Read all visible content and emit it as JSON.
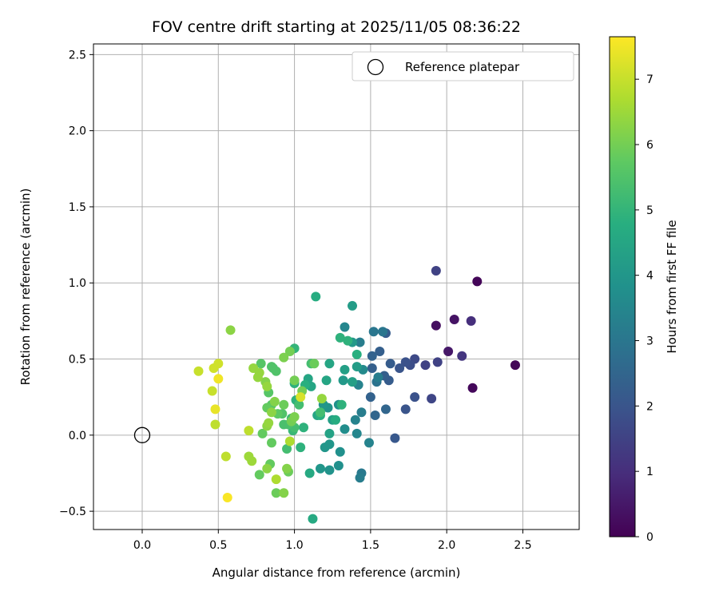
{
  "chart_data": {
    "type": "scatter",
    "title": "FOV centre drift starting at 2025/11/05 08:36:22",
    "xlabel": "Angular distance from reference (arcmin)",
    "ylabel": "Rotation from reference (arcmin)",
    "xlim": [
      -0.32,
      2.87
    ],
    "ylim": [
      -0.62,
      2.57
    ],
    "xticks": [
      0.0,
      0.5,
      1.0,
      1.5,
      2.0,
      2.5
    ],
    "xtick_labels": [
      "0.0",
      "0.5",
      "1.0",
      "1.5",
      "2.0",
      "2.5"
    ],
    "yticks": [
      -0.5,
      0.0,
      0.5,
      1.0,
      1.5,
      2.0,
      2.5
    ],
    "ytick_labels": [
      "−0.5",
      "0.0",
      "0.5",
      "1.0",
      "1.5",
      "2.0",
      "2.5"
    ],
    "grid": true,
    "legend": {
      "position": "top-right",
      "label": "Reference platepar"
    },
    "reference_point": {
      "x": 0.0,
      "y": 0.0
    },
    "colorbar": {
      "label": "Hours from first FF file",
      "colormap": "viridis",
      "min": 0,
      "max": 7.65,
      "ticks": [
        0,
        1,
        2,
        3,
        4,
        5,
        6,
        7
      ],
      "tick_labels": [
        "0",
        "1",
        "2",
        "3",
        "4",
        "5",
        "6",
        "7"
      ]
    },
    "points": [
      {
        "x": 2.2,
        "y": 1.01,
        "t": 0.1
      },
      {
        "x": 2.45,
        "y": 0.46,
        "t": 0.1
      },
      {
        "x": 2.17,
        "y": 0.31,
        "t": 0.15
      },
      {
        "x": 1.93,
        "y": 0.72,
        "t": 0.3
      },
      {
        "x": 2.05,
        "y": 0.76,
        "t": 0.4
      },
      {
        "x": 2.01,
        "y": 0.55,
        "t": 0.5
      },
      {
        "x": 2.16,
        "y": 0.75,
        "t": 1.0
      },
      {
        "x": 2.1,
        "y": 0.52,
        "t": 1.2
      },
      {
        "x": 1.93,
        "y": 1.08,
        "t": 1.5
      },
      {
        "x": 1.94,
        "y": 0.48,
        "t": 1.5
      },
      {
        "x": 1.86,
        "y": 0.46,
        "t": 1.5
      },
      {
        "x": 1.9,
        "y": 0.24,
        "t": 1.6
      },
      {
        "x": 1.79,
        "y": 0.5,
        "t": 1.7
      },
      {
        "x": 1.76,
        "y": 0.46,
        "t": 1.8
      },
      {
        "x": 1.73,
        "y": 0.48,
        "t": 1.9
      },
      {
        "x": 1.69,
        "y": 0.44,
        "t": 2.0
      },
      {
        "x": 1.79,
        "y": 0.25,
        "t": 1.9
      },
      {
        "x": 1.73,
        "y": 0.17,
        "t": 2.0
      },
      {
        "x": 1.66,
        "y": -0.02,
        "t": 2.1
      },
      {
        "x": 1.62,
        "y": 0.36,
        "t": 2.2
      },
      {
        "x": 1.63,
        "y": 0.47,
        "t": 2.2
      },
      {
        "x": 1.59,
        "y": 0.39,
        "t": 2.3
      },
      {
        "x": 1.6,
        "y": 0.67,
        "t": 2.2
      },
      {
        "x": 1.56,
        "y": 0.55,
        "t": 2.3
      },
      {
        "x": 1.51,
        "y": 0.52,
        "t": 2.4
      },
      {
        "x": 1.51,
        "y": 0.44,
        "t": 2.3
      },
      {
        "x": 1.5,
        "y": 0.25,
        "t": 2.4
      },
      {
        "x": 1.53,
        "y": 0.13,
        "t": 2.5
      },
      {
        "x": 1.6,
        "y": 0.17,
        "t": 2.5
      },
      {
        "x": 1.54,
        "y": 0.35,
        "t": 2.9
      },
      {
        "x": 1.58,
        "y": 0.68,
        "t": 3.0
      },
      {
        "x": 1.52,
        "y": 0.68,
        "t": 3.0
      },
      {
        "x": 1.55,
        "y": 0.38,
        "t": 3.2
      },
      {
        "x": 1.43,
        "y": 0.61,
        "t": 3.2
      },
      {
        "x": 1.44,
        "y": 0.15,
        "t": 3.2
      },
      {
        "x": 1.44,
        "y": -0.25,
        "t": 3.1
      },
      {
        "x": 1.43,
        "y": -0.28,
        "t": 3.2
      },
      {
        "x": 1.49,
        "y": -0.05,
        "t": 3.4
      },
      {
        "x": 1.4,
        "y": 0.1,
        "t": 3.4
      },
      {
        "x": 1.41,
        "y": 0.01,
        "t": 3.5
      },
      {
        "x": 1.33,
        "y": 0.71,
        "t": 3.5
      },
      {
        "x": 1.42,
        "y": 0.33,
        "t": 3.4
      },
      {
        "x": 1.45,
        "y": 0.43,
        "t": 3.6
      },
      {
        "x": 1.33,
        "y": 0.04,
        "t": 3.7
      },
      {
        "x": 1.29,
        "y": 0.2,
        "t": 3.8
      },
      {
        "x": 1.3,
        "y": -0.11,
        "t": 3.8
      },
      {
        "x": 1.29,
        "y": -0.2,
        "t": 3.8
      },
      {
        "x": 1.23,
        "y": -0.23,
        "t": 3.9
      },
      {
        "x": 1.22,
        "y": 0.18,
        "t": 3.9
      },
      {
        "x": 1.2,
        "y": -0.08,
        "t": 4.0
      },
      {
        "x": 1.19,
        "y": 0.2,
        "t": 4.0
      },
      {
        "x": 1.17,
        "y": -0.22,
        "t": 4.0
      },
      {
        "x": 1.23,
        "y": -0.06,
        "t": 4.0
      },
      {
        "x": 1.32,
        "y": 0.36,
        "t": 4.1
      },
      {
        "x": 1.38,
        "y": 0.61,
        "t": 4.1
      },
      {
        "x": 1.38,
        "y": 0.85,
        "t": 4.2
      },
      {
        "x": 1.41,
        "y": 0.45,
        "t": 4.2
      },
      {
        "x": 1.33,
        "y": 0.43,
        "t": 4.3
      },
      {
        "x": 1.38,
        "y": 0.35,
        "t": 4.3
      },
      {
        "x": 1.25,
        "y": 0.1,
        "t": 4.3
      },
      {
        "x": 1.23,
        "y": 0.01,
        "t": 4.4
      },
      {
        "x": 1.15,
        "y": 0.13,
        "t": 4.5
      },
      {
        "x": 1.21,
        "y": 0.36,
        "t": 4.5
      },
      {
        "x": 1.23,
        "y": 0.47,
        "t": 4.5
      },
      {
        "x": 1.11,
        "y": 0.32,
        "t": 4.5
      },
      {
        "x": 1.09,
        "y": 0.37,
        "t": 4.5
      },
      {
        "x": 1.1,
        "y": -0.25,
        "t": 4.6
      },
      {
        "x": 1.12,
        "y": -0.55,
        "t": 4.6
      },
      {
        "x": 1.14,
        "y": 0.91,
        "t": 4.7
      },
      {
        "x": 1.27,
        "y": 0.1,
        "t": 4.7
      },
      {
        "x": 1.31,
        "y": 0.2,
        "t": 4.9
      },
      {
        "x": 1.3,
        "y": 0.64,
        "t": 4.9
      },
      {
        "x": 1.35,
        "y": 0.62,
        "t": 4.9
      },
      {
        "x": 1.41,
        "y": 0.53,
        "t": 4.8
      },
      {
        "x": 1.17,
        "y": 0.13,
        "t": 4.8
      },
      {
        "x": 1.07,
        "y": 0.33,
        "t": 4.8
      },
      {
        "x": 1.06,
        "y": 0.05,
        "t": 4.9
      },
      {
        "x": 1.04,
        "y": -0.08,
        "t": 4.9
      },
      {
        "x": 1.0,
        "y": 0.34,
        "t": 4.9
      },
      {
        "x": 1.01,
        "y": 0.23,
        "t": 4.9
      },
      {
        "x": 1.0,
        "y": 0.57,
        "t": 5.0
      },
      {
        "x": 0.99,
        "y": 0.03,
        "t": 5.1
      },
      {
        "x": 0.98,
        "y": 0.11,
        "t": 5.2
      },
      {
        "x": 1.03,
        "y": 0.2,
        "t": 5.3
      },
      {
        "x": 1.0,
        "y": 0.05,
        "t": 5.3
      },
      {
        "x": 1.11,
        "y": 0.47,
        "t": 5.3
      },
      {
        "x": 1.17,
        "y": 0.15,
        "t": 5.3
      },
      {
        "x": 0.95,
        "y": -0.09,
        "t": 5.3
      },
      {
        "x": 0.96,
        "y": 0.07,
        "t": 5.4
      },
      {
        "x": 0.93,
        "y": 0.07,
        "t": 5.4
      },
      {
        "x": 0.86,
        "y": 0.44,
        "t": 5.4
      },
      {
        "x": 0.92,
        "y": 0.14,
        "t": 5.5
      },
      {
        "x": 0.85,
        "y": 0.45,
        "t": 5.5
      },
      {
        "x": 0.88,
        "y": 0.42,
        "t": 5.5
      },
      {
        "x": 0.78,
        "y": 0.47,
        "t": 5.6
      },
      {
        "x": 0.83,
        "y": 0.28,
        "t": 5.6
      },
      {
        "x": 0.85,
        "y": 0.2,
        "t": 5.6
      },
      {
        "x": 0.89,
        "y": 0.14,
        "t": 5.7
      },
      {
        "x": 0.85,
        "y": -0.05,
        "t": 5.8
      },
      {
        "x": 0.82,
        "y": 0.18,
        "t": 5.8
      },
      {
        "x": 0.77,
        "y": -0.26,
        "t": 5.8
      },
      {
        "x": 0.79,
        "y": 0.01,
        "t": 5.8
      },
      {
        "x": 0.84,
        "y": -0.19,
        "t": 5.8
      },
      {
        "x": 0.88,
        "y": -0.38,
        "t": 5.9
      },
      {
        "x": 0.93,
        "y": 0.2,
        "t": 5.9
      },
      {
        "x": 0.96,
        "y": -0.24,
        "t": 5.9
      },
      {
        "x": 0.98,
        "y": 0.09,
        "t": 6.0
      },
      {
        "x": 1.13,
        "y": 0.47,
        "t": 5.9
      },
      {
        "x": 1.05,
        "y": 0.29,
        "t": 6.0
      },
      {
        "x": 1.0,
        "y": 0.36,
        "t": 6.0
      },
      {
        "x": 0.97,
        "y": 0.55,
        "t": 6.0
      },
      {
        "x": 0.93,
        "y": 0.51,
        "t": 6.1
      },
      {
        "x": 1.0,
        "y": 0.12,
        "t": 6.1
      },
      {
        "x": 0.93,
        "y": -0.38,
        "t": 6.2
      },
      {
        "x": 0.95,
        "y": -0.22,
        "t": 6.2
      },
      {
        "x": 0.87,
        "y": 0.22,
        "t": 6.2
      },
      {
        "x": 0.81,
        "y": 0.35,
        "t": 6.2
      },
      {
        "x": 0.82,
        "y": 0.06,
        "t": 6.3
      },
      {
        "x": 0.82,
        "y": -0.22,
        "t": 6.3
      },
      {
        "x": 0.85,
        "y": 0.15,
        "t": 6.3
      },
      {
        "x": 1.18,
        "y": 0.24,
        "t": 6.4
      },
      {
        "x": 0.58,
        "y": 0.69,
        "t": 6.3
      },
      {
        "x": 0.73,
        "y": 0.44,
        "t": 6.4
      },
      {
        "x": 0.77,
        "y": 0.41,
        "t": 6.4
      },
      {
        "x": 0.76,
        "y": 0.38,
        "t": 6.4
      },
      {
        "x": 0.82,
        "y": 0.32,
        "t": 6.4
      },
      {
        "x": 0.83,
        "y": 0.08,
        "t": 6.4
      },
      {
        "x": 0.7,
        "y": -0.14,
        "t": 6.5
      },
      {
        "x": 0.72,
        "y": -0.17,
        "t": 6.5
      },
      {
        "x": 0.88,
        "y": -0.29,
        "t": 6.7
      },
      {
        "x": 0.97,
        "y": -0.04,
        "t": 6.7
      },
      {
        "x": 0.55,
        "y": -0.14,
        "t": 6.9
      },
      {
        "x": 0.7,
        "y": 0.03,
        "t": 6.9
      },
      {
        "x": 0.48,
        "y": 0.07,
        "t": 6.9
      },
      {
        "x": 0.46,
        "y": 0.29,
        "t": 7.0
      },
      {
        "x": 0.37,
        "y": 0.42,
        "t": 7.0
      },
      {
        "x": 0.47,
        "y": 0.44,
        "t": 7.1
      },
      {
        "x": 0.5,
        "y": 0.47,
        "t": 7.1
      },
      {
        "x": 1.04,
        "y": 0.25,
        "t": 7.2
      },
      {
        "x": 0.48,
        "y": 0.17,
        "t": 7.4
      },
      {
        "x": 0.5,
        "y": 0.37,
        "t": 7.5
      },
      {
        "x": 0.56,
        "y": -0.41,
        "t": 7.6
      }
    ]
  }
}
